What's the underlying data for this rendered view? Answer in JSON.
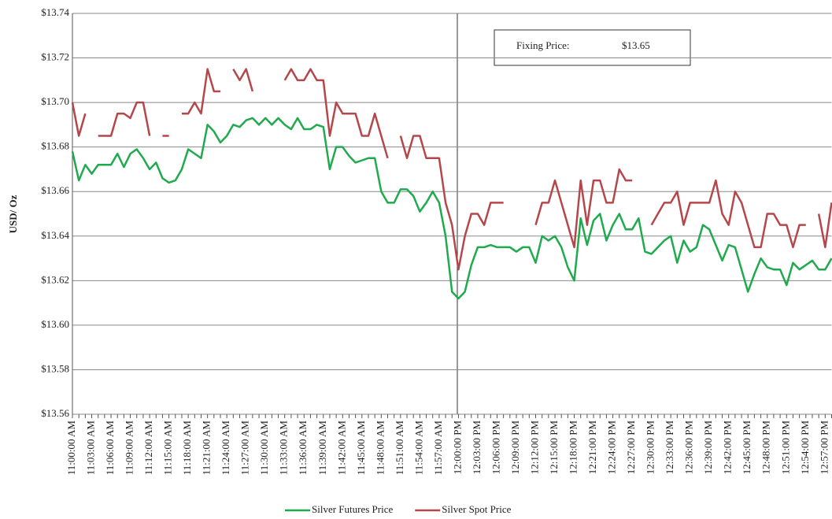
{
  "chart_data": {
    "type": "line",
    "ylabel": "USD/ Oz",
    "annotation": {
      "label": "Fixing Price:",
      "value_text": "$13.65"
    },
    "categories": [
      "11:00:00 AM",
      null,
      null,
      "11:03:00 AM",
      null,
      null,
      "11:06:00 AM",
      null,
      null,
      "11:09:00 AM",
      null,
      null,
      "11:12:00 AM",
      null,
      null,
      "11:15:00 AM",
      null,
      null,
      "11:18:00 AM",
      null,
      null,
      "11:21:00 AM",
      null,
      null,
      "11:24:00 AM",
      null,
      null,
      "11:27:00 AM",
      null,
      null,
      "11:30:00 AM",
      null,
      null,
      "11:33:00 AM",
      null,
      null,
      "11:36:00 AM",
      null,
      null,
      "11:39:00 AM",
      null,
      null,
      "11:42:00 AM",
      null,
      null,
      "11:45:00 AM",
      null,
      null,
      "11:48:00 AM",
      null,
      null,
      "11:51:00 AM",
      null,
      null,
      "11:54:00 AM",
      null,
      null,
      "11:57:00 AM",
      null,
      null,
      "12:00:00 PM",
      null,
      null,
      "12:03:00 PM",
      null,
      null,
      "12:06:00 PM",
      null,
      null,
      "12:09:00 PM",
      null,
      null,
      "12:12:00 PM",
      null,
      null,
      "12:15:00 PM",
      null,
      null,
      "12:18:00 PM",
      null,
      null,
      "12:21:00 PM",
      null,
      null,
      "12:24:00 PM",
      null,
      null,
      "12:27:00 PM",
      null,
      null,
      "12:30:00 PM",
      null,
      null,
      "12:33:00 PM",
      null,
      null,
      "12:36:00 PM",
      null,
      null,
      "12:39:00 PM",
      null,
      null,
      "12:42:00 PM",
      null,
      null,
      "12:45:00 PM",
      null,
      null,
      "12:48:00 PM",
      null,
      null,
      "12:51:00 PM",
      null,
      null,
      "12:54:00 PM",
      null,
      null,
      "12:57:00 PM",
      null
    ],
    "series": [
      {
        "name": "Silver Futures Price",
        "color": "#1faa4e",
        "values": [
          13.678,
          13.665,
          13.672,
          13.668,
          13.672,
          13.672,
          13.672,
          13.677,
          13.671,
          13.677,
          13.679,
          13.675,
          13.67,
          13.673,
          13.666,
          13.664,
          13.665,
          13.67,
          13.679,
          13.677,
          13.675,
          13.69,
          13.687,
          13.682,
          13.685,
          13.69,
          13.689,
          13.692,
          13.693,
          13.69,
          13.693,
          13.69,
          13.693,
          13.69,
          13.688,
          13.693,
          13.688,
          13.688,
          13.69,
          13.689,
          13.67,
          13.68,
          13.68,
          13.676,
          13.673,
          13.674,
          13.675,
          13.675,
          13.66,
          13.655,
          13.655,
          13.661,
          13.661,
          13.658,
          13.651,
          13.655,
          13.66,
          13.655,
          13.64,
          13.615,
          13.612,
          13.615,
          13.627,
          13.635,
          13.635,
          13.636,
          13.635,
          13.635,
          13.635,
          13.633,
          13.635,
          13.635,
          13.628,
          13.64,
          13.638,
          13.64,
          13.635,
          13.626,
          13.62,
          13.648,
          13.636,
          13.647,
          13.65,
          13.638,
          13.645,
          13.65,
          13.643,
          13.643,
          13.648,
          13.633,
          13.632,
          13.635,
          13.638,
          13.64,
          13.628,
          13.638,
          13.633,
          13.635,
          13.645,
          13.643,
          13.636,
          13.629,
          13.636,
          13.635,
          13.625,
          13.615,
          13.623,
          13.63,
          13.626,
          13.625,
          13.625,
          13.618,
          13.628,
          13.625,
          13.627,
          13.629,
          13.625,
          13.625,
          13.63
        ]
      },
      {
        "name": "Silver Spot Price",
        "color": "#b5474b",
        "values": [
          13.7,
          13.685,
          13.695,
          null,
          13.685,
          13.685,
          13.685,
          13.695,
          13.695,
          13.693,
          13.7,
          13.7,
          13.685,
          null,
          13.685,
          13.685,
          null,
          13.695,
          13.695,
          13.7,
          13.695,
          13.715,
          13.705,
          13.705,
          null,
          13.715,
          13.71,
          13.715,
          13.705,
          null,
          null,
          null,
          null,
          13.71,
          13.715,
          13.71,
          13.71,
          13.715,
          13.71,
          13.71,
          13.685,
          13.7,
          13.695,
          13.695,
          13.695,
          13.685,
          13.685,
          13.695,
          13.685,
          13.675,
          null,
          13.685,
          13.675,
          13.685,
          13.685,
          13.675,
          13.675,
          13.675,
          13.655,
          13.645,
          13.625,
          13.64,
          13.65,
          13.65,
          13.645,
          13.655,
          13.655,
          13.655,
          null,
          null,
          null,
          null,
          13.645,
          13.655,
          13.655,
          13.665,
          13.655,
          13.645,
          13.635,
          13.665,
          13.645,
          13.665,
          13.665,
          13.655,
          13.655,
          13.67,
          13.665,
          13.665,
          null,
          null,
          13.645,
          13.65,
          13.655,
          13.655,
          13.66,
          13.645,
          13.655,
          13.655,
          13.655,
          13.655,
          13.665,
          13.65,
          13.645,
          13.66,
          13.655,
          13.645,
          13.635,
          13.635,
          13.65,
          13.65,
          13.645,
          13.645,
          13.635,
          13.645,
          13.645,
          null,
          13.65,
          13.635,
          13.655
        ]
      }
    ],
    "ylim": [
      13.56,
      13.74
    ],
    "yticks": [
      {
        "value": 13.56,
        "label": "$13.56"
      },
      {
        "value": 13.58,
        "label": "$13.58"
      },
      {
        "value": 13.6,
        "label": "$13.60"
      },
      {
        "value": 13.62,
        "label": "$13.62"
      },
      {
        "value": 13.64,
        "label": "$13.64"
      },
      {
        "value": 13.66,
        "label": "$13.66"
      },
      {
        "value": 13.68,
        "label": "$13.68"
      },
      {
        "value": 13.7,
        "label": "$13.70"
      },
      {
        "value": 13.72,
        "label": "$13.72"
      },
      {
        "value": 13.74,
        "label": "$13.74"
      }
    ],
    "grid": true,
    "legend": "bottom"
  }
}
